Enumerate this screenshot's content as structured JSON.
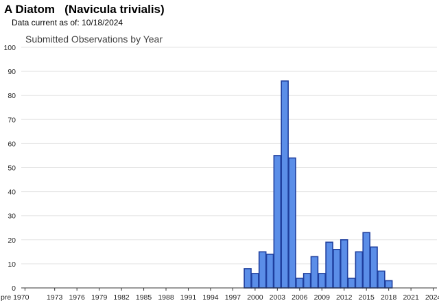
{
  "header": {
    "title": "A Diatom   (Navicula trivialis)",
    "subtitle": "Data current as of: 10/18/2024"
  },
  "colors": {
    "bar_fill": "#5b8ee8",
    "bar_stroke": "#1f3f9e",
    "grid": "#e3e3e3"
  },
  "chart_data": {
    "type": "bar",
    "title": "Submitted Observations by Year",
    "xlabel": "",
    "ylabel": "",
    "ylim": [
      0,
      100
    ],
    "yticks": [
      0,
      10,
      20,
      30,
      40,
      50,
      60,
      70,
      80,
      90,
      100
    ],
    "grid": true,
    "xtick_labels": [
      "pre 1970",
      "1973",
      "1976",
      "1979",
      "1982",
      "1985",
      "1988",
      "1991",
      "1994",
      "1997",
      "2000",
      "2003",
      "2006",
      "2009",
      "2012",
      "2015",
      "2018",
      "2021",
      "2024"
    ],
    "categories": [
      "pre 1970",
      "1970",
      "1971",
      "1972",
      "1973",
      "1974",
      "1975",
      "1976",
      "1977",
      "1978",
      "1979",
      "1980",
      "1981",
      "1982",
      "1983",
      "1984",
      "1985",
      "1986",
      "1987",
      "1988",
      "1989",
      "1990",
      "1991",
      "1992",
      "1993",
      "1994",
      "1995",
      "1996",
      "1997",
      "1998",
      "1999",
      "2000",
      "2001",
      "2002",
      "2003",
      "2004",
      "2005",
      "2006",
      "2007",
      "2008",
      "2009",
      "2010",
      "2011",
      "2012",
      "2013",
      "2014",
      "2015",
      "2016",
      "2017",
      "2018",
      "2019",
      "2020",
      "2021",
      "2022",
      "2023",
      "2024"
    ],
    "values": [
      0,
      0,
      0,
      0,
      0,
      0,
      0,
      0,
      0,
      0,
      0,
      0,
      0,
      0,
      0,
      0,
      0,
      0,
      0,
      0,
      0,
      0,
      0,
      0,
      0,
      0,
      0,
      0,
      0,
      0,
      8,
      6,
      15,
      14,
      55,
      86,
      54,
      4,
      6,
      13,
      6,
      19,
      16,
      20,
      4,
      15,
      23,
      17,
      7,
      3,
      0,
      0,
      0,
      0,
      0,
      0
    ]
  }
}
